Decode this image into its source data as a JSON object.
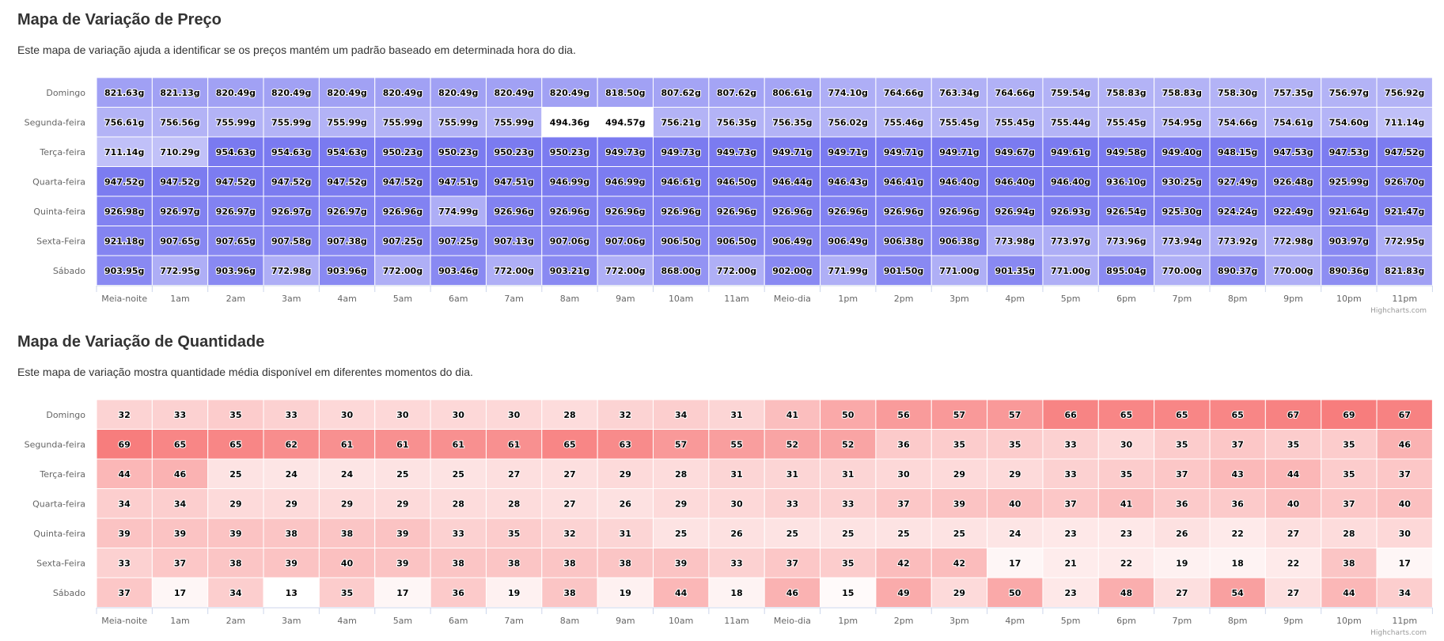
{
  "price_section": {
    "title": "Mapa de Variação de Preço",
    "description": "Este mapa de variação ajuda a identificar se os preços mantém um padrão baseado em determinada hora do dia.",
    "credit": "Highcharts.com"
  },
  "quantity_section": {
    "title": "Mapa de Variação de Quantidade",
    "description": "Este mapa de variação mostra quantidade média disponível em diferentes momentos do dia.",
    "credit": "Highcharts.com"
  },
  "colors": {
    "price_min": "#ffffff",
    "price_max": "#7a7af0",
    "quantity_min": "#ffffff",
    "quantity_max": "#f77d7d"
  },
  "chart_data": [
    {
      "type": "heatmap",
      "title": "Mapa de Variação de Preço",
      "value_suffix": "g",
      "y_categories": [
        "Domingo",
        "Segunda-feira",
        "Terça-feira",
        "Quarta-feira",
        "Quinta-feira",
        "Sexta-Feira",
        "Sábado"
      ],
      "x_categories": [
        "Meia-noite",
        "1am",
        "2am",
        "3am",
        "4am",
        "5am",
        "6am",
        "7am",
        "8am",
        "9am",
        "10am",
        "11am",
        "Meio-dia",
        "1pm",
        "2pm",
        "3pm",
        "4pm",
        "5pm",
        "6pm",
        "7pm",
        "8pm",
        "9pm",
        "10pm",
        "11pm"
      ],
      "values": [
        [
          821.63,
          821.13,
          820.49,
          820.49,
          820.49,
          820.49,
          820.49,
          820.49,
          820.49,
          818.5,
          807.62,
          807.62,
          806.61,
          774.1,
          764.66,
          763.34,
          764.66,
          759.54,
          758.83,
          758.83,
          758.3,
          757.35,
          756.97,
          756.92
        ],
        [
          756.61,
          756.56,
          755.99,
          755.99,
          755.99,
          755.99,
          755.99,
          755.99,
          494.36,
          494.57,
          756.21,
          756.35,
          756.35,
          756.02,
          755.46,
          755.45,
          755.45,
          755.44,
          755.45,
          754.95,
          754.66,
          754.61,
          754.6,
          711.14
        ],
        [
          711.14,
          710.29,
          954.63,
          954.63,
          954.63,
          950.23,
          950.23,
          950.23,
          950.23,
          949.73,
          949.73,
          949.73,
          949.71,
          949.71,
          949.71,
          949.71,
          949.67,
          949.61,
          949.58,
          949.4,
          948.15,
          947.53,
          947.53,
          947.52
        ],
        [
          947.52,
          947.52,
          947.52,
          947.52,
          947.52,
          947.52,
          947.51,
          947.51,
          946.99,
          946.99,
          946.61,
          946.5,
          946.44,
          946.43,
          946.41,
          946.4,
          946.4,
          946.4,
          936.1,
          930.25,
          927.49,
          926.48,
          925.99,
          926.7
        ],
        [
          926.98,
          926.97,
          926.97,
          926.97,
          926.97,
          926.96,
          774.99,
          926.96,
          926.96,
          926.96,
          926.96,
          926.96,
          926.96,
          926.96,
          926.96,
          926.96,
          926.94,
          926.93,
          926.54,
          925.3,
          924.24,
          922.49,
          921.64,
          921.47
        ],
        [
          921.18,
          907.65,
          907.65,
          907.58,
          907.38,
          907.25,
          907.25,
          907.13,
          907.06,
          907.06,
          906.5,
          906.5,
          906.49,
          906.49,
          906.38,
          906.38,
          773.98,
          773.97,
          773.96,
          773.94,
          773.92,
          772.98,
          903.97,
          772.95
        ],
        [
          903.95,
          772.95,
          903.96,
          772.98,
          903.96,
          772.0,
          903.46,
          772.0,
          903.21,
          772.0,
          868.0,
          772.0,
          902.0,
          771.99,
          901.5,
          771.0,
          901.35,
          771.0,
          895.04,
          770.0,
          890.37,
          770.0,
          890.36,
          821.83
        ]
      ]
    },
    {
      "type": "heatmap",
      "title": "Mapa de Variação de Quantidade",
      "value_suffix": "",
      "y_categories": [
        "Domingo",
        "Segunda-feira",
        "Terça-feira",
        "Quarta-feira",
        "Quinta-feira",
        "Sexta-Feira",
        "Sábado"
      ],
      "x_categories": [
        "Meia-noite",
        "1am",
        "2am",
        "3am",
        "4am",
        "5am",
        "6am",
        "7am",
        "8am",
        "9am",
        "10am",
        "11am",
        "Meio-dia",
        "1pm",
        "2pm",
        "3pm",
        "4pm",
        "5pm",
        "6pm",
        "7pm",
        "8pm",
        "9pm",
        "10pm",
        "11pm"
      ],
      "values": [
        [
          32,
          33,
          35,
          33,
          30,
          30,
          30,
          30,
          28,
          32,
          34,
          31,
          41,
          50,
          56,
          57,
          57,
          66,
          65,
          65,
          65,
          67,
          69,
          67
        ],
        [
          69,
          65,
          65,
          62,
          61,
          61,
          61,
          61,
          65,
          63,
          57,
          55,
          52,
          52,
          36,
          35,
          35,
          33,
          30,
          35,
          37,
          35,
          35,
          46
        ],
        [
          44,
          46,
          25,
          24,
          24,
          25,
          25,
          27,
          27,
          29,
          28,
          31,
          31,
          31,
          30,
          29,
          29,
          33,
          35,
          37,
          43,
          44,
          35,
          37
        ],
        [
          34,
          34,
          29,
          29,
          29,
          29,
          28,
          28,
          27,
          26,
          29,
          30,
          33,
          33,
          37,
          39,
          40,
          37,
          41,
          36,
          36,
          40,
          37,
          40
        ],
        [
          39,
          39,
          39,
          38,
          38,
          39,
          33,
          35,
          32,
          31,
          25,
          26,
          25,
          25,
          25,
          25,
          24,
          23,
          23,
          26,
          22,
          27,
          28,
          30
        ],
        [
          33,
          37,
          38,
          39,
          40,
          39,
          38,
          38,
          38,
          38,
          39,
          33,
          37,
          35,
          42,
          42,
          17,
          21,
          22,
          19,
          18,
          22,
          38,
          17
        ],
        [
          37,
          17,
          34,
          13,
          35,
          17,
          36,
          19,
          38,
          19,
          44,
          18,
          46,
          15,
          49,
          29,
          50,
          23,
          48,
          27,
          54,
          27,
          44,
          34
        ]
      ]
    }
  ]
}
